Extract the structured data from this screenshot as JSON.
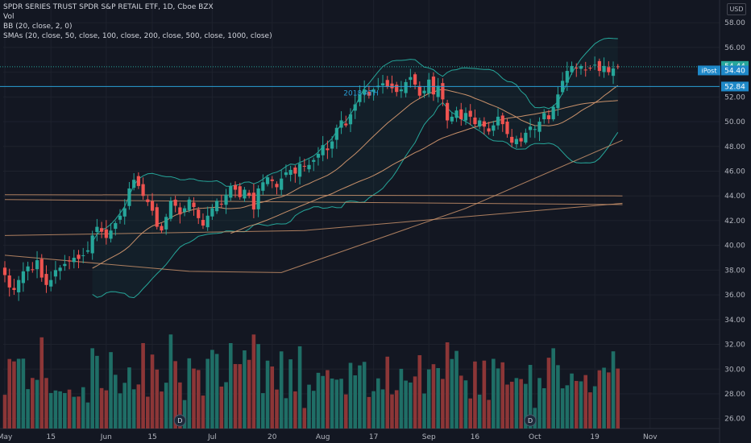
{
  "header": {
    "title": "SPDR SERIES TRUST SPDR S&P RETAIL ETF, 1D, Cboe BZX",
    "vol": "Vol",
    "bb": "BB (20, close, 2, 0)",
    "smas": "SMAs (20, close, 50, close, 100, close, 200, close, 500, close, 1000, close)"
  },
  "currency": "USD",
  "colors": {
    "bg": "#131722",
    "up": "#26a69a",
    "down": "#ef5350",
    "bb": "#26a69a",
    "sma": "#c8906a",
    "axis": "#b2b5be",
    "hline": "#2a9fd6"
  },
  "annotation": {
    "text": "2018 ATH",
    "price": 52.84
  },
  "last_price_labels": [
    {
      "text": "54.44",
      "price": 54.44,
      "color": "#26a69a"
    },
    {
      "text": "54.40",
      "price": 54.4,
      "color": "#1e88c8",
      "tag": "iPost"
    },
    {
      "text": "52.84",
      "price": 52.84,
      "color": "#1e88c8"
    }
  ],
  "dividend_markers": [
    {
      "label": "D",
      "date_index": 38
    },
    {
      "label": "D",
      "date_index": 114
    }
  ],
  "chart_data": {
    "type": "candlestick",
    "y_ticks": [
      26,
      28,
      30,
      32,
      34,
      36,
      38,
      40,
      42,
      44,
      46,
      48,
      50,
      52,
      54,
      56,
      58
    ],
    "ylim": [
      25.2,
      58.4
    ],
    "x_labels": [
      {
        "label": "May",
        "index": 0
      },
      {
        "label": "15",
        "index": 10
      },
      {
        "label": "Jun",
        "index": 22
      },
      {
        "label": "15",
        "index": 32
      },
      {
        "label": "Jul",
        "index": 45
      },
      {
        "label": "20",
        "index": 58
      },
      {
        "label": "Aug",
        "index": 69
      },
      {
        "label": "17",
        "index": 80
      },
      {
        "label": "Sep",
        "index": 92
      },
      {
        "label": "16",
        "index": 102
      },
      {
        "label": "Oct",
        "index": 115
      },
      {
        "label": "19",
        "index": 128
      },
      {
        "label": "Nov",
        "index": 140
      }
    ],
    "close": [
      37.6,
      36.6,
      36.4,
      37.2,
      37.9,
      38.3,
      38.0,
      38.8,
      37.4,
      36.8,
      37.2,
      38.0,
      38.2,
      38.5,
      38.7,
      39.0,
      38.9,
      39.2,
      39.6,
      40.8,
      41.5,
      41.1,
      40.6,
      41.2,
      41.8,
      42.4,
      43.0,
      44.6,
      45.3,
      44.8,
      44.0,
      43.5,
      42.8,
      41.5,
      41.2,
      42.3,
      43.6,
      43.2,
      42.5,
      43.0,
      43.7,
      43.1,
      42.2,
      41.6,
      42.4,
      43.0,
      43.6,
      43.3,
      44.1,
      44.8,
      44.5,
      43.9,
      44.5,
      44.0,
      42.9,
      44.6,
      45.1,
      45.5,
      45.2,
      44.7,
      45.4,
      45.9,
      46.1,
      45.8,
      46.6,
      46.4,
      46.5,
      46.9,
      47.4,
      48.1,
      47.7,
      48.4,
      49.5,
      50.1,
      49.7,
      50.6,
      51.4,
      52.2,
      52.6,
      52.1,
      52.6,
      52.9,
      53.1,
      52.8,
      52.7,
      52.4,
      52.6,
      53.2,
      53.6,
      53.0,
      52.1,
      52.5,
      53.4,
      52.2,
      52.9,
      51.8,
      50.1,
      50.4,
      50.9,
      50.2,
      50.7,
      50.4,
      49.8,
      50.1,
      49.6,
      49.2,
      49.7,
      50.4,
      49.8,
      49.0,
      48.3,
      48.6,
      48.4,
      49.1,
      49.6,
      49.4,
      50.0,
      50.7,
      50.2,
      51.2,
      52.2,
      53.3,
      54.1,
      54.5,
      54.3,
      54.5,
      54.2,
      54.3,
      54.6,
      54.1,
      54.5,
      54.0,
      54.3,
      54.4
    ],
    "volume_max": 14.0
  }
}
